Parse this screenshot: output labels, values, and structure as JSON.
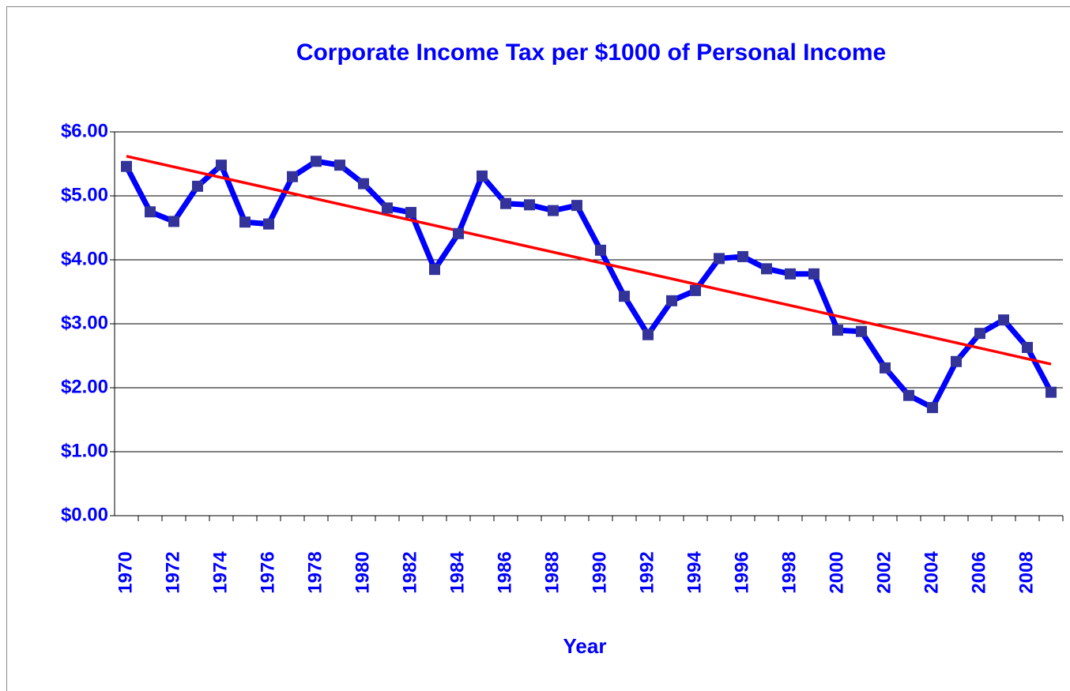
{
  "chart_data": {
    "type": "line",
    "title": "Corporate Income Tax per $1000 of Personal Income",
    "x_label": "Year",
    "categories": [
      "1970",
      null,
      "1972",
      null,
      "1974",
      null,
      "1976",
      null,
      "1978",
      null,
      "1980",
      null,
      "1982",
      null,
      "1984",
      null,
      "1986",
      null,
      "1988",
      null,
      "1990",
      null,
      "1992",
      null,
      "1994",
      null,
      "1996",
      null,
      "1998",
      null,
      "2000",
      null,
      "2002",
      null,
      "2004",
      null,
      "2006",
      null,
      "2008",
      null
    ],
    "values": [
      5.46,
      4.75,
      4.6,
      5.15,
      5.48,
      4.59,
      4.56,
      5.3,
      5.54,
      5.48,
      5.19,
      4.81,
      4.74,
      3.85,
      4.41,
      5.31,
      4.88,
      4.86,
      4.77,
      4.85,
      4.15,
      3.43,
      2.83,
      3.36,
      3.52,
      4.02,
      4.05,
      3.86,
      3.78,
      3.78,
      2.9,
      2.88,
      2.31,
      1.88,
      1.69,
      2.41,
      2.85,
      3.06,
      2.63,
      1.93
    ],
    "color": "#0000ff",
    "marker_color": "#333399",
    "trend": {
      "color": "#ff0000",
      "start": 5.62,
      "end": 2.37
    },
    "ylim": [
      0,
      6
    ],
    "yticks": [
      {
        "value": 0,
        "label": "$0.00"
      },
      {
        "value": 1,
        "label": "$1.00"
      },
      {
        "value": 2,
        "label": "$2.00"
      },
      {
        "value": 3,
        "label": "$3.00"
      },
      {
        "value": 4,
        "label": "$4.00"
      },
      {
        "value": 5,
        "label": "$5.00"
      },
      {
        "value": 6,
        "label": "$6.00"
      }
    ],
    "grid": true
  }
}
